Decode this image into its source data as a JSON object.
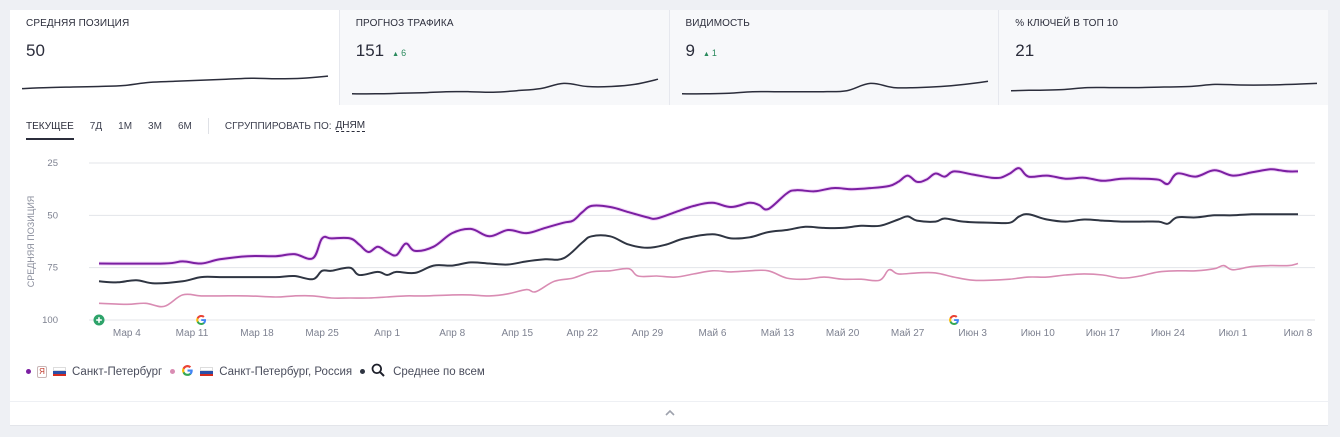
{
  "cards": [
    {
      "title": "СРЕДНЯЯ ПОЗИЦИЯ",
      "value": "50",
      "delta": "",
      "active": true,
      "spark": [
        10,
        11,
        11.5,
        12,
        13,
        16,
        17,
        18,
        19,
        20,
        19.5,
        20,
        22
      ]
    },
    {
      "title": "ПРОГНОЗ ТРАФИКА",
      "value": "151",
      "delta": "6",
      "active": false,
      "spark": [
        5,
        5,
        5.5,
        6,
        7,
        7,
        6.5,
        8,
        10,
        15,
        12,
        12,
        14,
        19
      ]
    },
    {
      "title": "ВИДИМОСТЬ",
      "value": "9",
      "delta": "1",
      "active": false,
      "spark": [
        5,
        5,
        5.5,
        7,
        7,
        7,
        7,
        8,
        15,
        11,
        11,
        12,
        14,
        17
      ]
    },
    {
      "title": "% КЛЮЧЕЙ В ТОП 10",
      "value": "21",
      "delta": "",
      "active": false,
      "spark": [
        8,
        8.5,
        9,
        11,
        11,
        11,
        11.5,
        12,
        14,
        13.5,
        13.5,
        14,
        15
      ]
    }
  ],
  "toolbar": {
    "tabs": [
      "ТЕКУЩЕЕ",
      "7Д",
      "1М",
      "3М",
      "6М"
    ],
    "active_tab": "ТЕКУЩЕЕ",
    "group_label": "СГРУППИРОВАТЬ ПО:",
    "group_value": "ДНЯМ"
  },
  "legend": [
    {
      "engine": "yandex",
      "engine_icon": "Я",
      "label": "Санкт-Петербург",
      "color": "#7b1fa2"
    },
    {
      "engine": "google",
      "engine_icon": "G",
      "label": "Санкт-Петербург, Россия",
      "color": "#d98cb3"
    },
    {
      "engine": "average",
      "engine_icon": "search-icon",
      "label": "Среднее по всем",
      "color": "#2f3542"
    }
  ],
  "chart_data": {
    "type": "line",
    "title": "",
    "ylabel": "СРЕДНЯЯ ПОЗИЦИЯ",
    "xlabel": "",
    "ylim": [
      25,
      100
    ],
    "y_inverted": true,
    "yticks": [
      25,
      50,
      75,
      100
    ],
    "grid": true,
    "x_start": "Mar 1",
    "x_end": "Jul 8",
    "x_day_span": 129,
    "xtick_labels": [
      "Мар 4",
      "Мар 11",
      "Мар 18",
      "Мар 25",
      "Апр 1",
      "Апр 8",
      "Апр 15",
      "Апр 22",
      "Апр 29",
      "Май 6",
      "Май 13",
      "Май 20",
      "Май 27",
      "Июн 3",
      "Июн 10",
      "Июн 17",
      "Июн 24",
      "Июл 1",
      "Июл 8"
    ],
    "xtick_days": [
      3,
      10,
      17,
      24,
      31,
      38,
      45,
      52,
      59,
      66,
      73,
      80,
      87,
      94,
      101,
      108,
      115,
      122,
      129
    ],
    "annotations": [
      {
        "day": 0,
        "kind": "add-marker",
        "color": "#2ea36a"
      },
      {
        "day": 11,
        "kind": "google-update"
      },
      {
        "day": 92,
        "kind": "google-update"
      }
    ],
    "legend_position": "bottom-left",
    "series": [
      {
        "name": "Яндекс — Санкт-Петербург",
        "color": "#7b1fa2",
        "days": [
          0,
          7,
          9,
          11,
          13,
          16,
          19,
          21,
          23,
          24,
          25,
          27,
          28,
          29,
          30,
          31,
          32,
          33,
          34,
          36,
          38,
          40,
          42,
          44,
          46,
          48,
          50,
          51,
          52,
          53,
          55,
          57,
          59,
          60,
          62,
          64,
          66,
          68,
          70,
          71,
          72,
          74,
          75,
          77,
          79,
          81,
          83,
          85,
          86,
          87,
          88,
          89,
          90,
          91,
          92,
          94,
          96,
          97,
          98,
          99,
          100,
          102,
          104,
          106,
          108,
          110,
          112,
          114,
          115,
          116,
          118,
          120,
          122,
          124,
          126,
          127,
          128,
          129
        ],
        "values": [
          73,
          73,
          72,
          73,
          71,
          69.5,
          69.5,
          68.5,
          70.5,
          61,
          61,
          61,
          64,
          67.5,
          65,
          67.5,
          69,
          63.5,
          67,
          65,
          58.5,
          56.5,
          60,
          57,
          58.5,
          56,
          53.5,
          52.5,
          48.5,
          45.5,
          46,
          48.5,
          51,
          51.5,
          48.5,
          45.5,
          44,
          46,
          44,
          45,
          47,
          39.5,
          38,
          38.5,
          37,
          37.5,
          37,
          36,
          34,
          31,
          34,
          33,
          30,
          31.5,
          29,
          30.5,
          32,
          32,
          30,
          27.5,
          31.5,
          31,
          32.5,
          32,
          33.5,
          32.5,
          32.5,
          33,
          35,
          30,
          31.5,
          28.5,
          31,
          29.5,
          28,
          28.5,
          29,
          29
        ]
      },
      {
        "name": "Google — Санкт-Петербург, Россия",
        "color": "#d98cb3",
        "days": [
          0,
          3,
          5,
          7,
          9,
          11,
          13,
          16,
          19,
          21,
          23,
          25,
          27,
          29,
          31,
          33,
          35,
          38,
          40,
          42,
          44,
          46,
          47,
          49,
          51,
          53,
          55,
          57,
          58,
          60,
          62,
          64,
          66,
          68,
          70,
          72,
          74,
          76,
          78,
          80,
          82,
          84,
          85,
          86,
          88,
          90,
          92,
          94,
          96,
          98,
          100,
          102,
          104,
          106,
          108,
          110,
          112,
          114,
          116,
          118,
          120,
          121,
          122,
          124,
          126,
          128,
          129
        ],
        "values": [
          92,
          92.5,
          92,
          93.5,
          88,
          88.5,
          88.5,
          88.5,
          89,
          88.5,
          88.5,
          89.5,
          89.5,
          89.5,
          89,
          88.5,
          88.5,
          88,
          88,
          88.5,
          87.5,
          85.5,
          86.5,
          81.5,
          80,
          77,
          76.5,
          75.5,
          79,
          79,
          79.5,
          78,
          76.5,
          77,
          76.5,
          76.5,
          80,
          80.5,
          79.5,
          80.5,
          80.5,
          81,
          76,
          78,
          77.5,
          77.5,
          79.5,
          81,
          81,
          80.5,
          79.5,
          79.5,
          78.5,
          78,
          78.5,
          80,
          79,
          77,
          76.5,
          76.5,
          75.5,
          74,
          76,
          74.5,
          74,
          74,
          73
        ]
      },
      {
        "name": "Среднее по всем",
        "color": "#2f3542",
        "days": [
          0,
          2,
          4,
          6,
          9,
          11,
          13,
          16,
          19,
          21,
          23,
          24,
          25,
          27,
          28,
          30,
          31,
          32,
          34,
          36,
          38,
          40,
          42,
          44,
          46,
          48,
          50,
          52,
          53,
          55,
          57,
          59,
          61,
          63,
          66,
          68,
          70,
          72,
          74,
          76,
          78,
          80,
          82,
          84,
          86,
          87,
          88,
          90,
          91,
          93,
          96,
          98,
          99,
          100,
          102,
          104,
          106,
          108,
          110,
          112,
          114,
          115,
          116,
          118,
          120,
          122,
          124,
          126,
          127,
          129
        ],
        "values": [
          81.5,
          82,
          81,
          82.5,
          81.5,
          79.5,
          79.5,
          79.5,
          79.5,
          79,
          80.5,
          76.5,
          76.5,
          75,
          78.5,
          77,
          78.5,
          77,
          77.5,
          74,
          74,
          72.5,
          73,
          73.5,
          72,
          71,
          70.5,
          63,
          60,
          60,
          64,
          65.5,
          64,
          61,
          59,
          61,
          60.5,
          58,
          57,
          55.5,
          56,
          56,
          55,
          55,
          52,
          50.5,
          52.5,
          53,
          51.5,
          53,
          53.5,
          53.5,
          50.5,
          49.5,
          52,
          53,
          52,
          52.5,
          53,
          53,
          53,
          54,
          51,
          51,
          50,
          50,
          49.5,
          49.5,
          49.5,
          49.5
        ]
      }
    ]
  }
}
